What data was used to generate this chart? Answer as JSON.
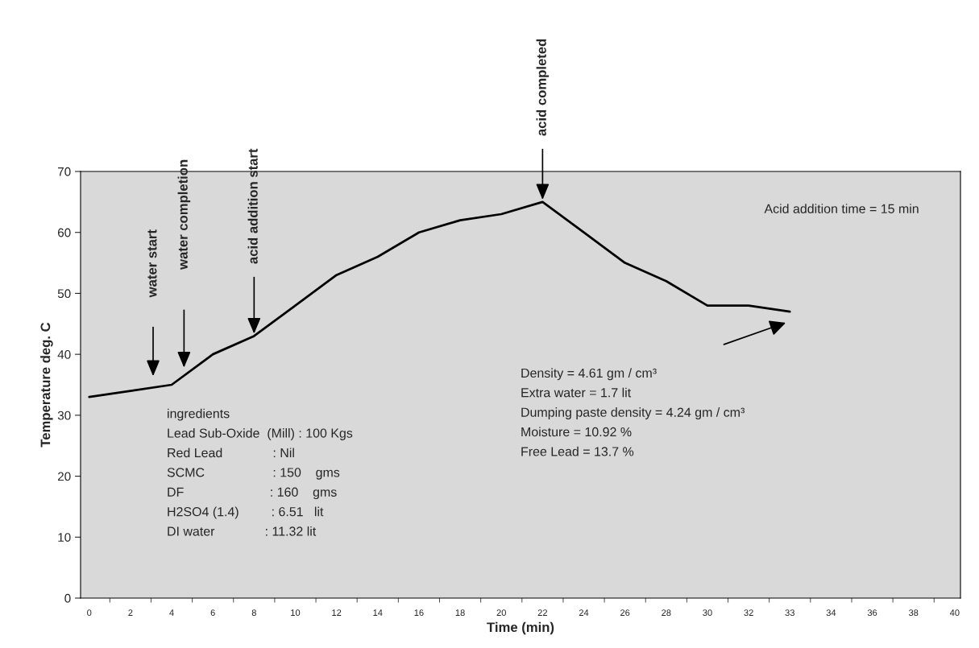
{
  "chart_data": {
    "type": "line",
    "xlabel": "Time (min)",
    "ylabel": "Temperature deg. C",
    "categories": [
      "0",
      "2",
      "4",
      "6",
      "8",
      "10",
      "12",
      "14",
      "16",
      "18",
      "20",
      "22",
      "24",
      "26",
      "28",
      "30",
      "32",
      "33",
      "34",
      "36",
      "38",
      "40"
    ],
    "series": [
      {
        "color": "#000000",
        "values": [
          33,
          34,
          35,
          40,
          43,
          48,
          53,
          56,
          60,
          62,
          63,
          65,
          60,
          55,
          52,
          48,
          48,
          47,
          null,
          null,
          null,
          null
        ]
      }
    ],
    "ylim": [
      0,
      70
    ],
    "yticks": [
      0,
      10,
      20,
      30,
      40,
      50,
      60,
      70
    ],
    "grid": false,
    "marker": "none",
    "line_style": "solid",
    "annotations": [
      "water start",
      "water completion",
      {
        "text": "acid addition start",
        "x": "8",
        "y": 43
      },
      {
        "text": "acid completed",
        "x": "22",
        "y": 65
      },
      "Acid addition time = 15 min",
      "ingredients",
      "Lead Sub-Oxide  (Mill) : 100 Kgs",
      "Red Lead              : Nil",
      "SCMC                   : 150    gms",
      "DF                        : 160    gms",
      "H2SO4 (1.4)         : 6.51   lit",
      "DI water              : 11.32 lit",
      "Density = 4.61 gm / cm³",
      "Extra water = 1.7 lit",
      "Dumping paste density = 4.24 gm / cm³",
      "Moisture = 10.92 %",
      "Free Lead = 13.7 %"
    ]
  }
}
